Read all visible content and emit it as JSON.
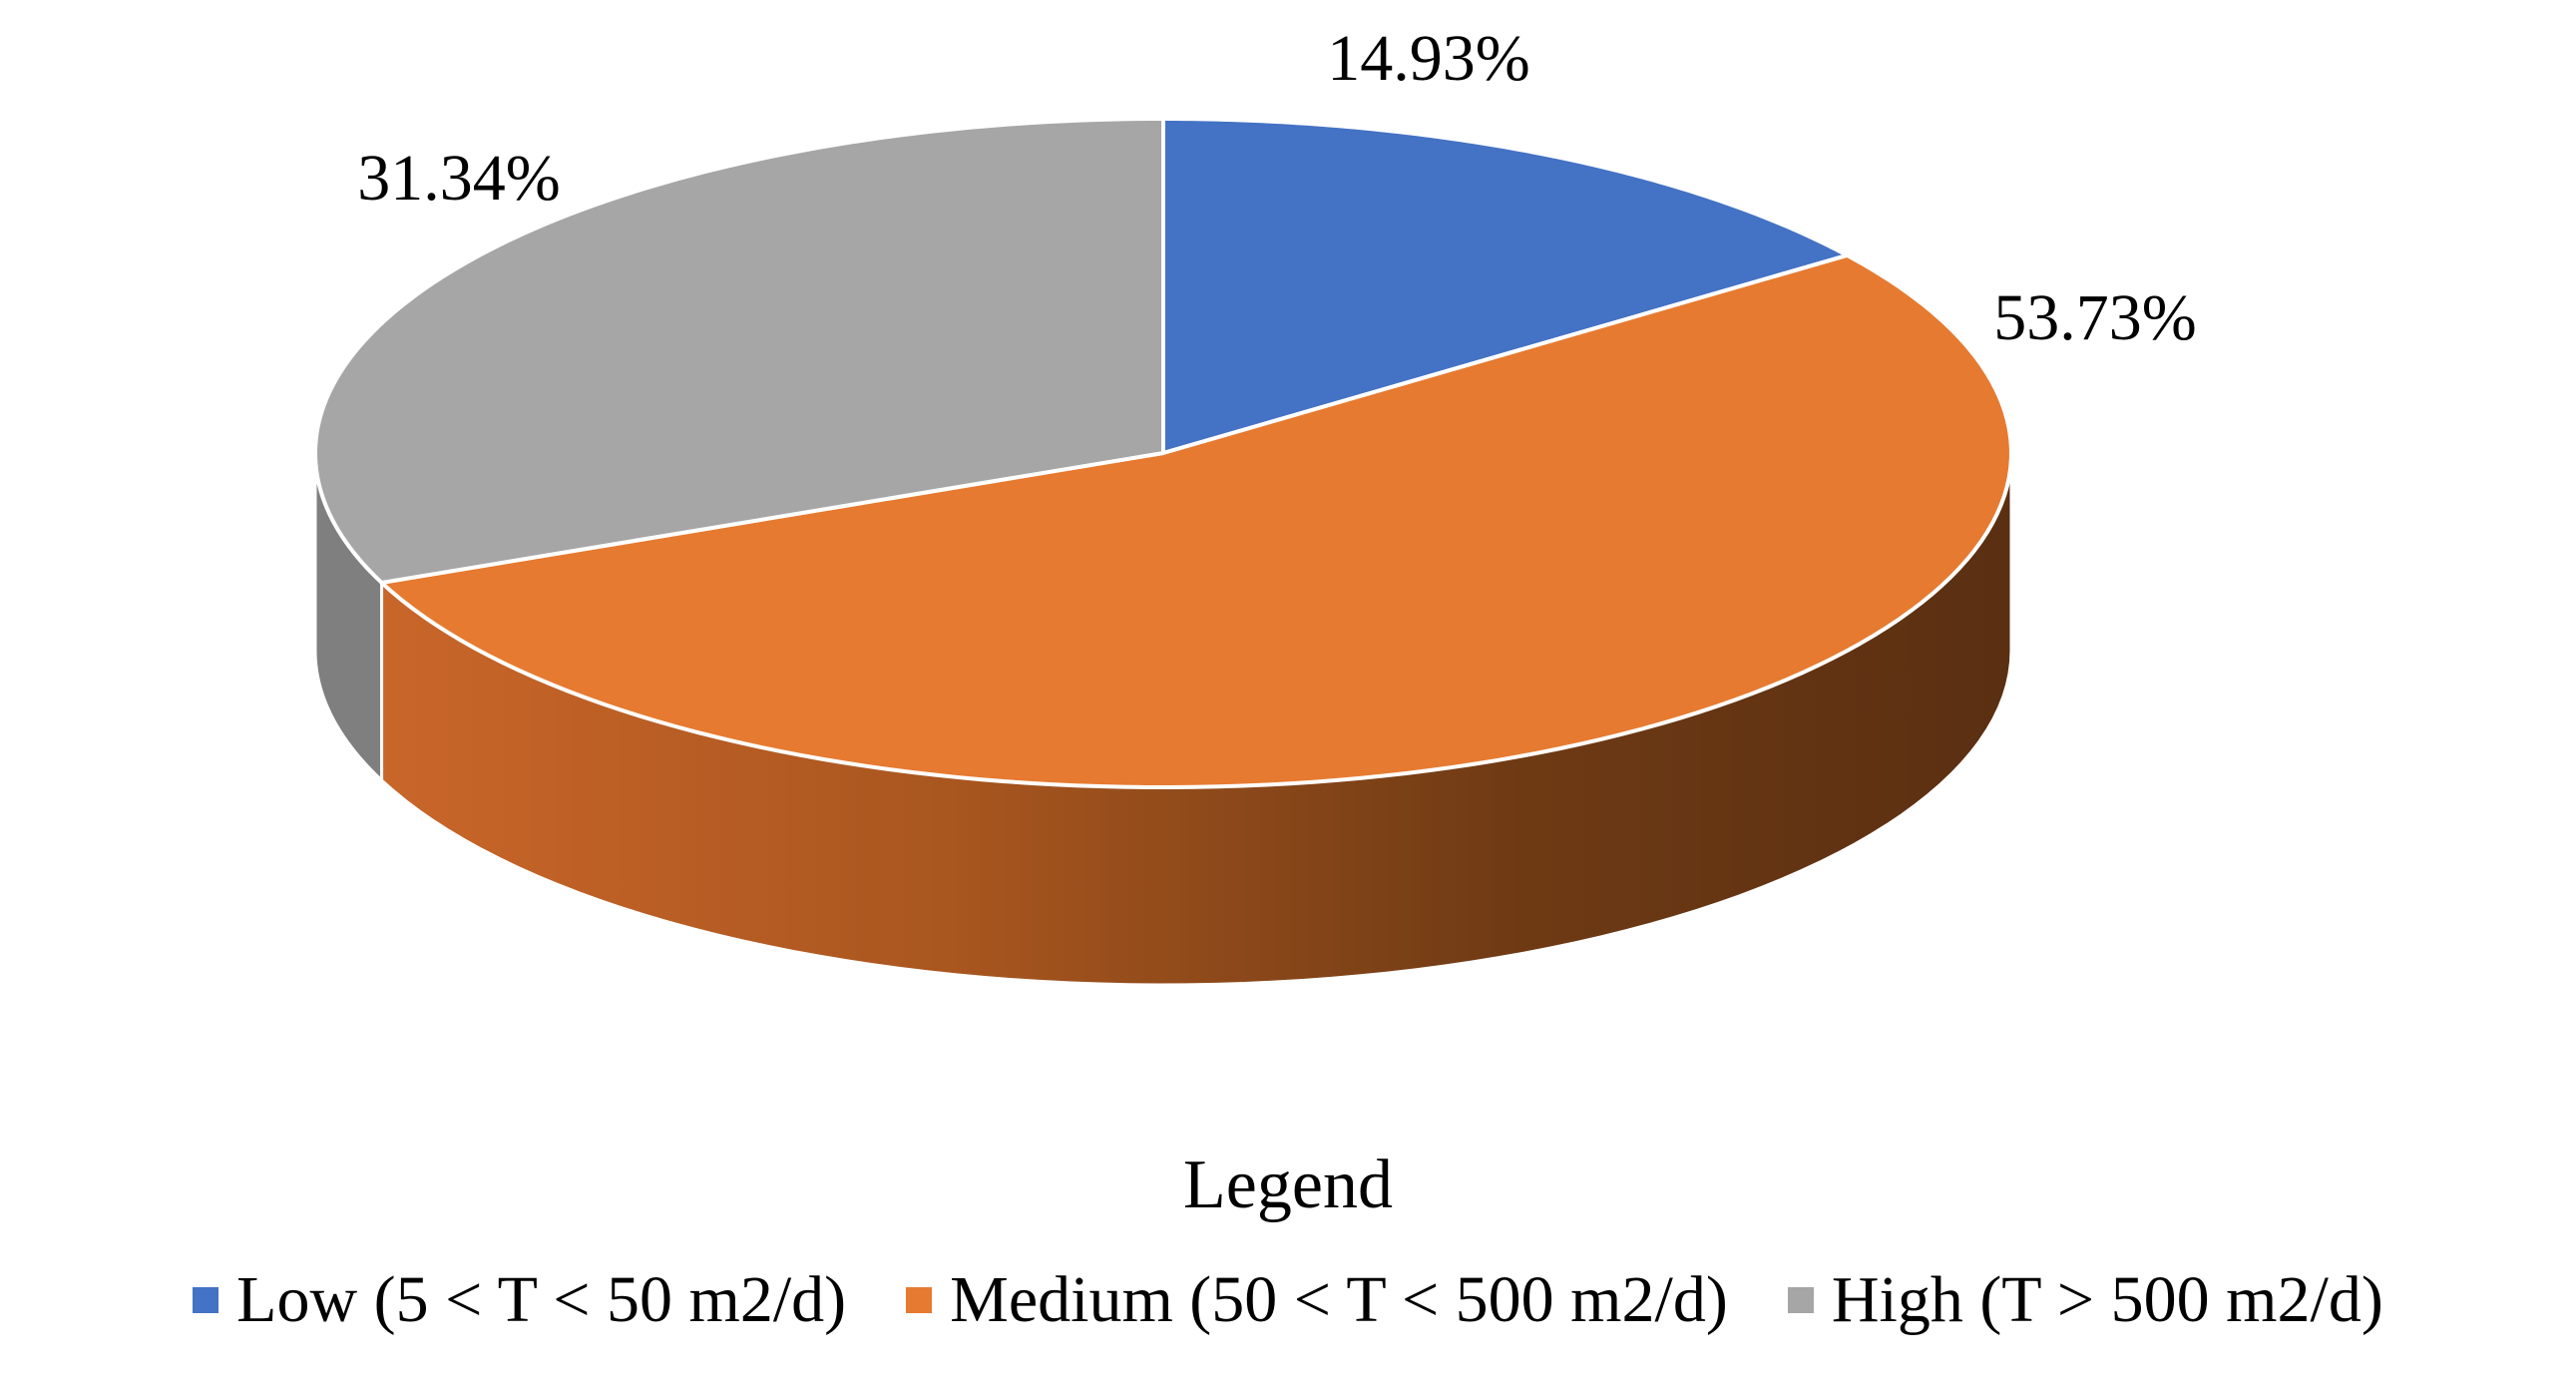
{
  "chart_data": {
    "type": "pie",
    "style": "3d",
    "categories": [
      "Low (5 < T < 50 m2/d)",
      "Medium (50 < T < 500 m2/d)",
      "High (T > 500 m2/d)"
    ],
    "values": [
      14.93,
      53.73,
      31.34
    ],
    "data_labels": [
      "14.93%",
      "53.73%",
      "31.34%"
    ],
    "colors": [
      "#4472C4",
      "#E67A30",
      "#A6A6A6"
    ],
    "side_colors": [
      "#2F5597",
      "#9C4A14",
      "#7F7F7F"
    ],
    "legend_title": "Legend",
    "legend_position": "bottom",
    "start": "top, clockwise"
  }
}
